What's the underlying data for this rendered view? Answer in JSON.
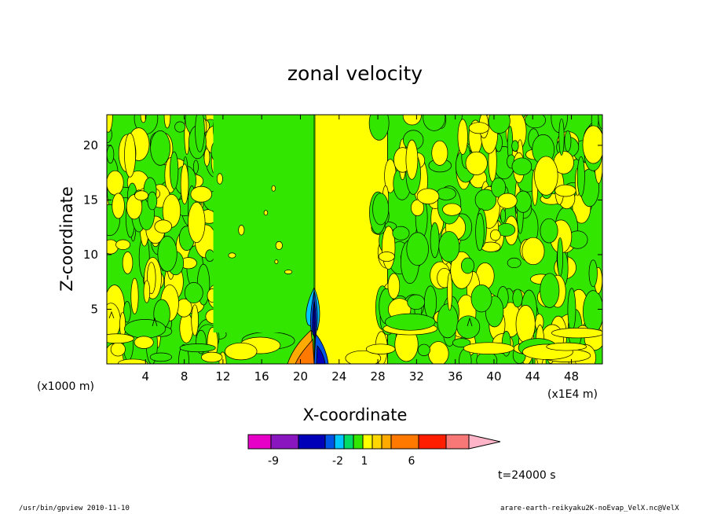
{
  "chart_data": {
    "type": "heatmap",
    "title": "zonal velocity",
    "xlabel": "X-coordinate",
    "ylabel": "Z-coordinate",
    "x_unit_label": "(x1E4 m)",
    "y_unit_label": "(x1000 m)",
    "xlim": [
      0,
      51.2
    ],
    "ylim": [
      0,
      22.8
    ],
    "x_ticks": [
      "4",
      "8",
      "12",
      "16",
      "20",
      "24",
      "28",
      "32",
      "36",
      "40",
      "44",
      "48"
    ],
    "y_ticks": [
      "5",
      "10",
      "15",
      "20"
    ],
    "field_regions": [
      {
        "name": "left outer band",
        "x_range": [
          0,
          11
        ],
        "dominant": "mixed green/yellow"
      },
      {
        "name": "left inner region",
        "x_range": [
          11,
          21.5
        ],
        "dominant": "green"
      },
      {
        "name": "right inner region",
        "x_range": [
          21.5,
          29
        ],
        "dominant": "yellow"
      },
      {
        "name": "right outer band",
        "x_range": [
          29,
          51.2
        ],
        "dominant": "mixed green/yellow"
      },
      {
        "name": "central jet",
        "x_range": [
          20,
          23
        ],
        "z_range": [
          0,
          7
        ],
        "dominant": "blue/orange"
      }
    ],
    "colorbar": {
      "colors": [
        "#e600c8",
        "#8a16c0",
        "#0000b8",
        "#0055e6",
        "#00c8ff",
        "#00dc64",
        "#32e600",
        "#ffff00",
        "#ffd700",
        "#ffaa00",
        "#ff7800",
        "#ff1e00",
        "#f87878",
        "#ffb4c8"
      ],
      "tick_labels": [
        "-9",
        "-2",
        "1",
        "6"
      ]
    },
    "time_label": "t=24000 s"
  },
  "footer": {
    "left": "/usr/bin/gpview   2010-11-10",
    "right": "arare-earth-reikyaku2K-noEvap_VelX.nc@VelX"
  }
}
